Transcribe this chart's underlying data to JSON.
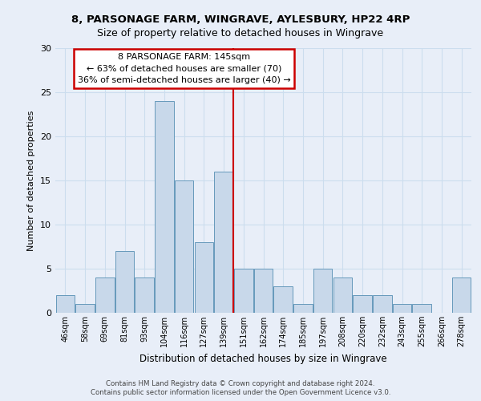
{
  "title1": "8, PARSONAGE FARM, WINGRAVE, AYLESBURY, HP22 4RP",
  "title2": "Size of property relative to detached houses in Wingrave",
  "xlabel": "Distribution of detached houses by size in Wingrave",
  "ylabel": "Number of detached properties",
  "categories": [
    "46sqm",
    "58sqm",
    "69sqm",
    "81sqm",
    "93sqm",
    "104sqm",
    "116sqm",
    "127sqm",
    "139sqm",
    "151sqm",
    "162sqm",
    "174sqm",
    "185sqm",
    "197sqm",
    "208sqm",
    "220sqm",
    "232sqm",
    "243sqm",
    "255sqm",
    "266sqm",
    "278sqm"
  ],
  "values": [
    2,
    1,
    4,
    7,
    4,
    24,
    15,
    8,
    16,
    5,
    5,
    3,
    1,
    5,
    4,
    2,
    2,
    1,
    1,
    0,
    4
  ],
  "bar_color": "#c8d8ea",
  "bar_edgecolor": "#6699bb",
  "annotation_line1": "8 PARSONAGE FARM: 145sqm",
  "annotation_line2": "← 63% of detached houses are smaller (70)",
  "annotation_line3": "36% of semi-detached houses are larger (40) →",
  "annotation_box_facecolor": "#ffffff",
  "annotation_box_edgecolor": "#cc0000",
  "vline_color": "#cc0000",
  "vline_x_index": 8.5,
  "ylim": [
    0,
    30
  ],
  "yticks": [
    0,
    5,
    10,
    15,
    20,
    25,
    30
  ],
  "grid_color": "#ccddee",
  "background_color": "#e8eef8",
  "footer_line1": "Contains HM Land Registry data © Crown copyright and database right 2024.",
  "footer_line2": "Contains public sector information licensed under the Open Government Licence v3.0."
}
